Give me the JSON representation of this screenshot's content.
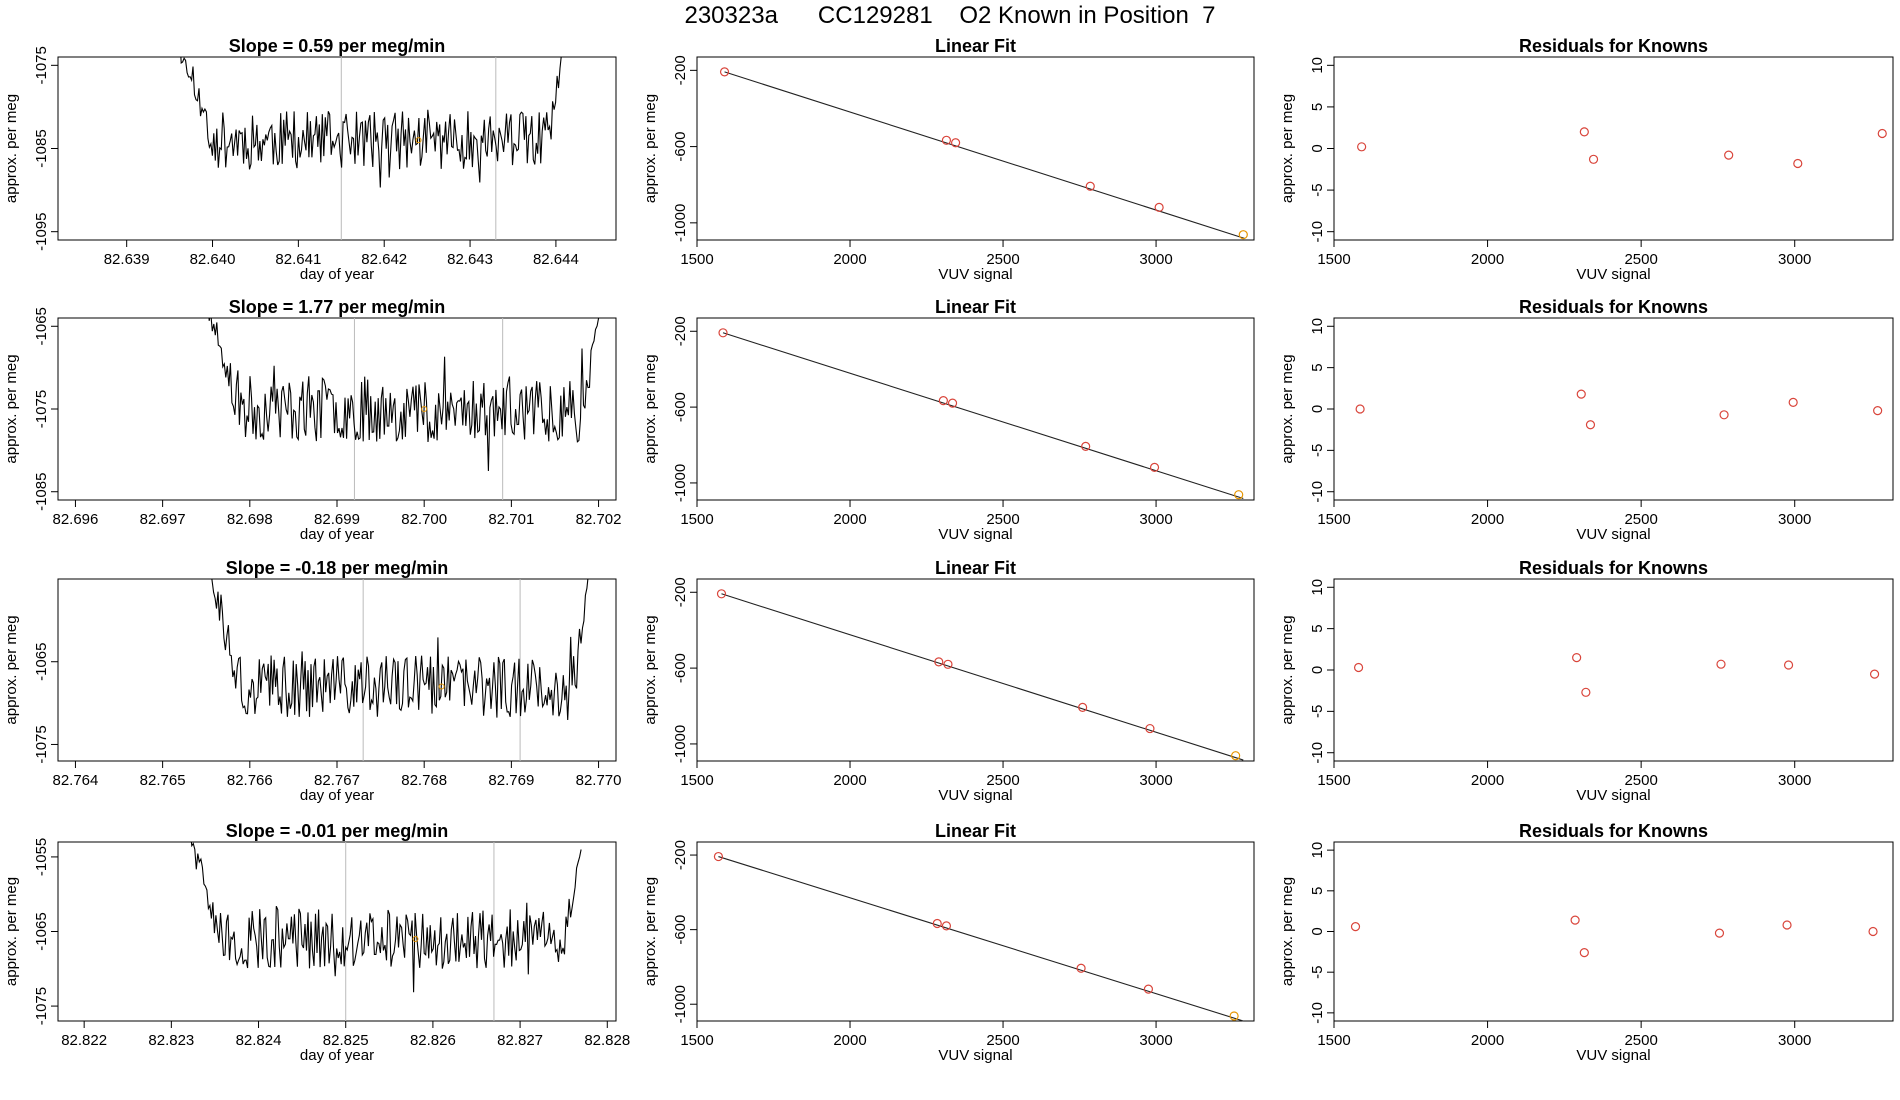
{
  "figure": {
    "title": "230323a      CC129281    O2 Known in Position  7"
  },
  "colors": {
    "line": "#000000",
    "fit_line": "#222222",
    "residual_points": "#d9453b",
    "known_points_red": "#d9453b",
    "highlight_point": "#e69500",
    "vline": "#bbbbbb",
    "axis": "#000000"
  },
  "chart_data": [
    {
      "type": "line",
      "panel": "time-series",
      "row": 0,
      "title": "Slope =  0.59  per meg/min",
      "xlabel": "day of year",
      "ylabel": "approx. per meg",
      "xlim": [
        82.6382,
        82.6447
      ],
      "ylim": [
        -1096,
        -1074
      ],
      "xticks": [
        "82.639",
        "82.640",
        "82.641",
        "82.642",
        "82.643",
        "82.644"
      ],
      "yticks": [
        "-1075",
        "-1085",
        "-1095"
      ],
      "vlines": [
        82.6415,
        82.6433
      ],
      "highlight": [
        82.6424,
        -1084
      ],
      "series_start": 82.6396,
      "series_end": 82.6441,
      "series_mean": -1084,
      "series_amp": 3.5,
      "edge_start": -1072,
      "edge_end": -1072,
      "seed": 11
    },
    {
      "type": "scatter",
      "panel": "linear-fit",
      "row": 0,
      "title": "Linear Fit",
      "xlabel": "VUV signal",
      "ylabel": "approx. per meg",
      "xlim": [
        1500,
        3320
      ],
      "ylim": [
        -1090,
        -130
      ],
      "xticks": [
        "1500",
        "2000",
        "2500",
        "3000"
      ],
      "yticks": [
        "-200",
        "-600",
        "-1000"
      ],
      "line": {
        "x": [
          1590,
          3290
        ],
        "y": [
          -208,
          -1082
        ]
      },
      "points": [
        {
          "x": 1590,
          "y": -208
        },
        {
          "x": 2315,
          "y": -567
        },
        {
          "x": 2345,
          "y": -580
        },
        {
          "x": 2785,
          "y": -808
        },
        {
          "x": 3010,
          "y": -919
        },
        {
          "x": 3285,
          "y": -1062
        }
      ],
      "highlight_index": 5
    },
    {
      "type": "scatter",
      "panel": "residuals",
      "row": 0,
      "title": "Residuals for Knowns",
      "xlabel": "VUV signal",
      "ylabel": "approx. per meg",
      "xlim": [
        1500,
        3320
      ],
      "ylim": [
        -11,
        11
      ],
      "xticks": [
        "1500",
        "2000",
        "2500",
        "3000"
      ],
      "yticks": [
        "10",
        "5",
        "0",
        "-5",
        "-10"
      ],
      "points": [
        {
          "x": 1590,
          "y": 0.2
        },
        {
          "x": 2315,
          "y": 2.0
        },
        {
          "x": 2345,
          "y": -1.3
        },
        {
          "x": 2785,
          "y": -0.8
        },
        {
          "x": 3010,
          "y": -1.8
        },
        {
          "x": 3285,
          "y": 1.8
        }
      ]
    },
    {
      "type": "line",
      "panel": "time-series",
      "row": 1,
      "title": "Slope =  1.77  per meg/min",
      "xlabel": "day of year",
      "ylabel": "approx. per meg",
      "xlim": [
        82.6958,
        82.7022
      ],
      "ylim": [
        -1086,
        -1064
      ],
      "xticks": [
        "82.696",
        "82.697",
        "82.698",
        "82.699",
        "82.700",
        "82.701",
        "82.702"
      ],
      "yticks": [
        "-1065",
        "-1075",
        "-1085"
      ],
      "vlines": [
        82.6992,
        82.7009
      ],
      "highlight": [
        82.7,
        -1075
      ],
      "series_start": 82.6975,
      "series_end": 82.702,
      "series_mean": -1075,
      "series_amp": 4,
      "edge_start": -1062,
      "edge_end": -1064,
      "seed": 23
    },
    {
      "type": "scatter",
      "panel": "linear-fit",
      "row": 1,
      "title": "Linear Fit",
      "xlabel": "VUV signal",
      "ylabel": "approx. per meg",
      "xlim": [
        1500,
        3320
      ],
      "ylim": [
        -1090,
        -130
      ],
      "xticks": [
        "1500",
        "2000",
        "2500",
        "3000"
      ],
      "yticks": [
        "-200",
        "-600",
        "-1000"
      ],
      "line": {
        "x": [
          1585,
          3285
        ],
        "y": [
          -208,
          -1082
        ]
      },
      "points": [
        {
          "x": 1585,
          "y": -208
        },
        {
          "x": 2305,
          "y": -566
        },
        {
          "x": 2335,
          "y": -579
        },
        {
          "x": 2770,
          "y": -807
        },
        {
          "x": 2995,
          "y": -918
        },
        {
          "x": 3270,
          "y": -1062
        }
      ],
      "highlight_index": 5
    },
    {
      "type": "scatter",
      "panel": "residuals",
      "row": 1,
      "title": "Residuals for Knowns",
      "xlabel": "VUV signal",
      "ylabel": "approx. per meg",
      "xlim": [
        1500,
        3320
      ],
      "ylim": [
        -11,
        11
      ],
      "xticks": [
        "1500",
        "2000",
        "2500",
        "3000"
      ],
      "yticks": [
        "10",
        "5",
        "0",
        "-5",
        "-10"
      ],
      "points": [
        {
          "x": 1585,
          "y": 0.0
        },
        {
          "x": 2305,
          "y": 1.8
        },
        {
          "x": 2335,
          "y": -1.9
        },
        {
          "x": 2770,
          "y": -0.7
        },
        {
          "x": 2995,
          "y": 0.8
        },
        {
          "x": 3270,
          "y": -0.2
        }
      ]
    },
    {
      "type": "line",
      "panel": "time-series",
      "row": 2,
      "title": "Slope =  -0.18  per meg/min",
      "xlabel": "day of year",
      "ylabel": "approx. per meg",
      "xlim": [
        82.7638,
        82.7702
      ],
      "ylim": [
        -1077,
        -1055
      ],
      "xticks": [
        "82.764",
        "82.765",
        "82.766",
        "82.767",
        "82.768",
        "82.769",
        "82.770"
      ],
      "yticks": [
        "-1065",
        "-1075"
      ],
      "vlines": [
        82.7673,
        82.7691
      ],
      "highlight": [
        82.7682,
        -1068
      ],
      "series_start": 82.7655,
      "series_end": 82.7699,
      "series_mean": -1068,
      "series_amp": 3.8,
      "edge_start": -1053,
      "edge_end": -1053,
      "seed": 37
    },
    {
      "type": "scatter",
      "panel": "linear-fit",
      "row": 2,
      "title": "Linear Fit",
      "xlabel": "VUV signal",
      "ylabel": "approx. per meg",
      "xlim": [
        1500,
        3320
      ],
      "ylim": [
        -1090,
        -130
      ],
      "xticks": [
        "1500",
        "2000",
        "2500",
        "3000"
      ],
      "yticks": [
        "-200",
        "-600",
        "-1000"
      ],
      "line": {
        "x": [
          1580,
          3285
        ],
        "y": [
          -208,
          -1085
        ]
      },
      "points": [
        {
          "x": 1580,
          "y": -208
        },
        {
          "x": 2290,
          "y": -567
        },
        {
          "x": 2320,
          "y": -580
        },
        {
          "x": 2760,
          "y": -807
        },
        {
          "x": 2980,
          "y": -919
        },
        {
          "x": 3260,
          "y": -1062
        }
      ],
      "highlight_index": 5
    },
    {
      "type": "scatter",
      "panel": "residuals",
      "row": 2,
      "title": "Residuals for Knowns",
      "xlabel": "VUV signal",
      "ylabel": "approx. per meg",
      "xlim": [
        1500,
        3320
      ],
      "ylim": [
        -11,
        11
      ],
      "xticks": [
        "1500",
        "2000",
        "2500",
        "3000"
      ],
      "yticks": [
        "10",
        "5",
        "0",
        "-5",
        "-10"
      ],
      "points": [
        {
          "x": 1580,
          "y": 0.3
        },
        {
          "x": 2290,
          "y": 1.5
        },
        {
          "x": 2320,
          "y": -2.7
        },
        {
          "x": 2760,
          "y": 0.7
        },
        {
          "x": 2980,
          "y": 0.6
        },
        {
          "x": 3260,
          "y": -0.5
        }
      ]
    },
    {
      "type": "line",
      "panel": "time-series",
      "row": 3,
      "title": "Slope =  -0.01  per meg/min",
      "xlabel": "day of year",
      "ylabel": "approx. per meg",
      "xlim": [
        82.8217,
        82.8281
      ],
      "ylim": [
        -1077,
        -1053
      ],
      "xticks": [
        "82.822",
        "82.823",
        "82.824",
        "82.825",
        "82.826",
        "82.827",
        "82.828"
      ],
      "yticks": [
        "-1055",
        "-1065",
        "-1075"
      ],
      "vlines": [
        82.825,
        82.8267
      ],
      "highlight": [
        82.8258,
        -1066
      ],
      "series_start": 82.8232,
      "series_end": 82.8277,
      "series_mean": -1066,
      "series_amp": 4,
      "edge_start": -1052,
      "edge_end": -1054,
      "seed": 51
    },
    {
      "type": "scatter",
      "panel": "linear-fit",
      "row": 3,
      "title": "Linear Fit",
      "xlabel": "VUV signal",
      "ylabel": "approx. per meg",
      "xlim": [
        1500,
        3320
      ],
      "ylim": [
        -1090,
        -130
      ],
      "xticks": [
        "1500",
        "2000",
        "2500",
        "3000"
      ],
      "yticks": [
        "-200",
        "-600",
        "-1000"
      ],
      "line": {
        "x": [
          1570,
          3285
        ],
        "y": [
          -208,
          -1090
        ]
      },
      "points": [
        {
          "x": 1570,
          "y": -208
        },
        {
          "x": 2285,
          "y": -567
        },
        {
          "x": 2315,
          "y": -580
        },
        {
          "x": 2755,
          "y": -807
        },
        {
          "x": 2975,
          "y": -919
        },
        {
          "x": 3255,
          "y": -1063
        }
      ],
      "highlight_index": 5
    },
    {
      "type": "scatter",
      "panel": "residuals",
      "row": 3,
      "title": "Residuals for Knowns",
      "xlabel": "VUV signal",
      "ylabel": "approx. per meg",
      "xlim": [
        1500,
        3320
      ],
      "ylim": [
        -11,
        11
      ],
      "xticks": [
        "1500",
        "2000",
        "2500",
        "3000"
      ],
      "yticks": [
        "10",
        "5",
        "0",
        "-5",
        "-10"
      ],
      "points": [
        {
          "x": 1570,
          "y": 0.6
        },
        {
          "x": 2285,
          "y": 1.4
        },
        {
          "x": 2315,
          "y": -2.6
        },
        {
          "x": 2755,
          "y": -0.2
        },
        {
          "x": 2975,
          "y": 0.8
        },
        {
          "x": 3255,
          "y": 0.0
        }
      ]
    }
  ]
}
